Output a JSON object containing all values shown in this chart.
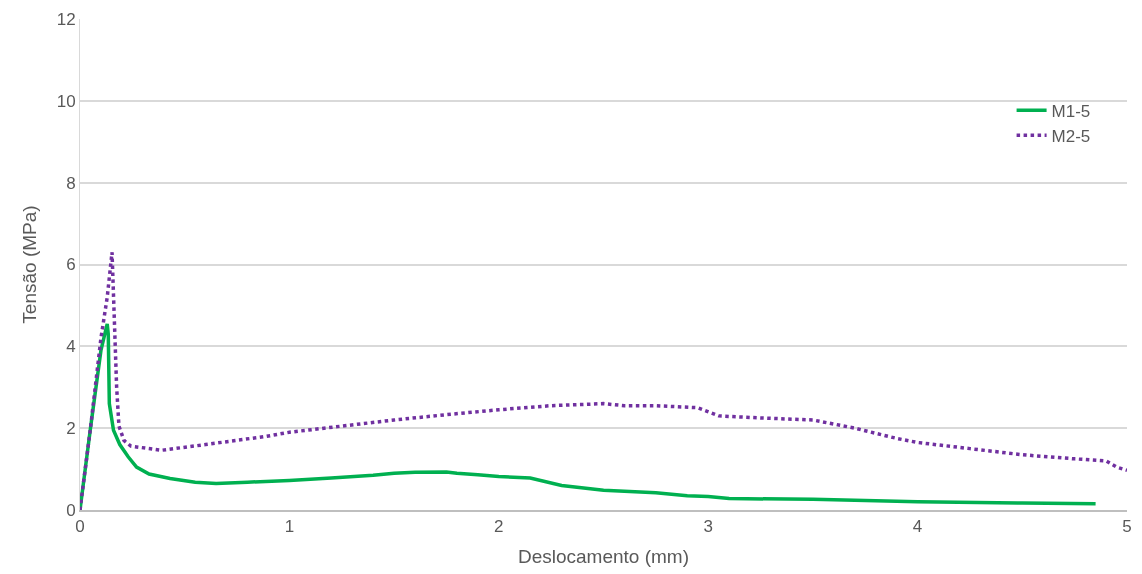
{
  "chart_data": {
    "type": "line",
    "xlabel": "Deslocamento (mm)",
    "ylabel": "Tensão (MPa)",
    "xlim": [
      0,
      5
    ],
    "xticks": [
      0,
      1,
      2,
      3,
      4,
      5
    ],
    "ylim": [
      0,
      12
    ],
    "yticks": [
      0,
      2,
      4,
      6,
      8,
      10,
      12
    ],
    "grid": "y",
    "legend": "top right",
    "series": [
      {
        "name": "M1-5",
        "color": "#00b050",
        "line_style": "solid",
        "x": [
          0,
          0.05,
          0.1,
          0.13,
          0.135,
          0.14,
          0.16,
          0.19,
          0.23,
          0.27,
          0.33,
          0.43,
          0.55,
          0.65,
          0.8,
          1.0,
          1.2,
          1.4,
          1.5,
          1.6,
          1.75,
          1.8,
          1.9,
          2.0,
          2.15,
          2.3,
          2.5,
          2.75,
          2.9,
          3.0,
          3.1,
          3.5,
          4.0,
          4.5,
          4.85
        ],
        "values": [
          0,
          2.0,
          3.9,
          4.55,
          4.3,
          2.6,
          1.95,
          1.6,
          1.3,
          1.05,
          0.88,
          0.77,
          0.68,
          0.65,
          0.68,
          0.72,
          0.78,
          0.85,
          0.9,
          0.92,
          0.93,
          0.9,
          0.86,
          0.82,
          0.78,
          0.6,
          0.48,
          0.42,
          0.35,
          0.33,
          0.28,
          0.26,
          0.2,
          0.17,
          0.15
        ]
      },
      {
        "name": "M2-5",
        "color": "#7030a0",
        "line_style": "dotted",
        "x": [
          0,
          0.05,
          0.1,
          0.13,
          0.153,
          0.165,
          0.175,
          0.186,
          0.21,
          0.243,
          0.39,
          0.6,
          0.89,
          1.0,
          1.25,
          1.5,
          1.75,
          2.0,
          2.25,
          2.5,
          2.6,
          2.75,
          2.95,
          3.05,
          3.25,
          3.5,
          3.7,
          3.9,
          4.0,
          4.25,
          4.5,
          4.75,
          4.9,
          4.95,
          5.0
        ],
        "values": [
          0,
          2.0,
          4.2,
          5.2,
          6.3,
          4.5,
          3.0,
          2.05,
          1.7,
          1.56,
          1.46,
          1.6,
          1.8,
          1.9,
          2.05,
          2.2,
          2.33,
          2.45,
          2.55,
          2.6,
          2.55,
          2.55,
          2.5,
          2.3,
          2.25,
          2.2,
          2.0,
          1.75,
          1.65,
          1.5,
          1.35,
          1.25,
          1.2,
          1.05,
          0.97
        ]
      }
    ]
  }
}
